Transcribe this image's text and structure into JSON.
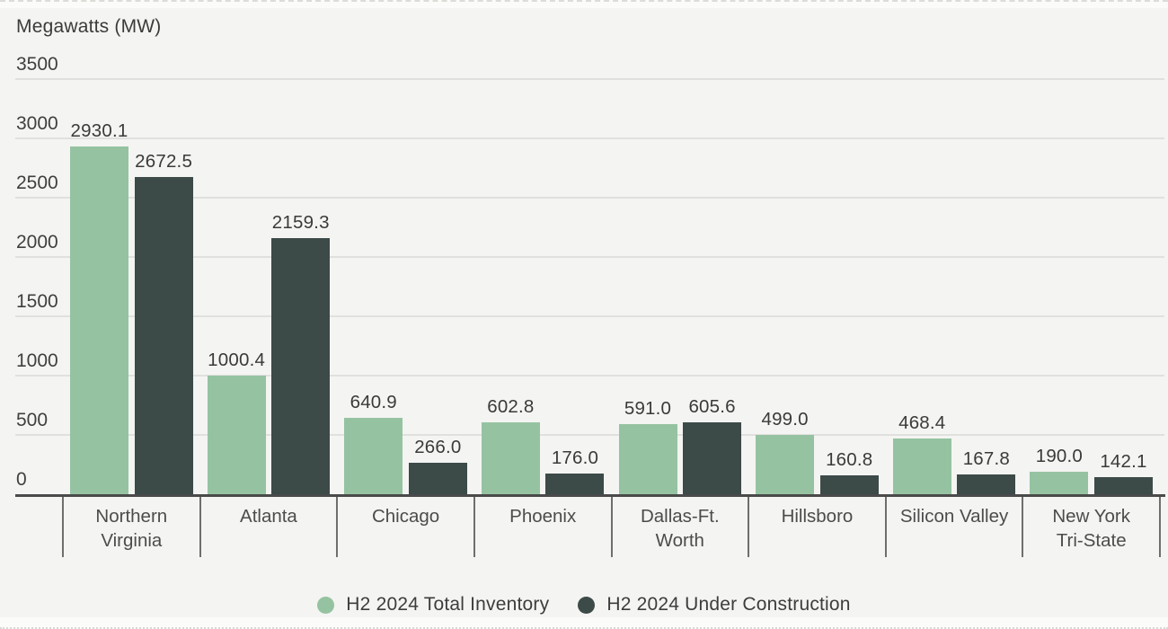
{
  "chart_data": {
    "type": "bar",
    "title": "Megawatts (MW)",
    "ylabel": "Megawatts (MW)",
    "ylim": [
      0,
      3500
    ],
    "yticks": [
      0,
      500,
      1000,
      1500,
      2000,
      2500,
      3000,
      3500
    ],
    "grid": true,
    "legend_position": "bottom-center",
    "categories": [
      "Northern\nVirginia",
      "Atlanta",
      "Chicago",
      "Phoenix",
      "Dallas-Ft.\nWorth",
      "Hillsboro",
      "Silicon Valley",
      "New York\nTri-State"
    ],
    "series": [
      {
        "name": "H2 2024 Total Inventory",
        "color": "#95c3a1",
        "values": [
          2930.1,
          1000.4,
          640.9,
          602.8,
          591.0,
          499.0,
          468.4,
          190.0
        ]
      },
      {
        "name": "H2 2024 Under Construction",
        "color": "#3c4a48",
        "values": [
          2672.5,
          2159.3,
          266.0,
          176.0,
          605.6,
          160.8,
          167.8,
          142.1
        ]
      }
    ],
    "value_label_decimals": 1
  },
  "colors": {
    "background": "#f4f4f2",
    "gridline": "#e0e0de",
    "axis": "#4a4a4a",
    "text": "#3b3b3b",
    "series_inventory": "#95c3a1",
    "series_construction": "#3c4a48"
  }
}
